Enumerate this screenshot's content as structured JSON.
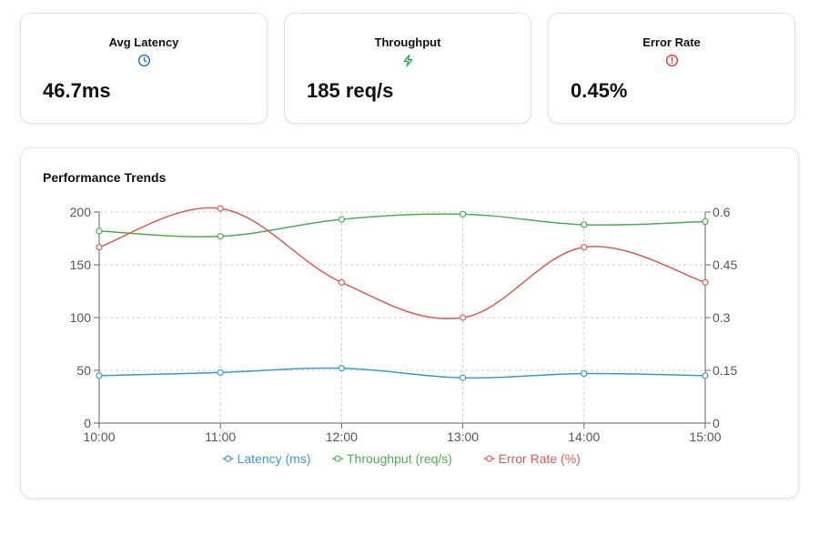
{
  "cards": [
    {
      "title": "Avg Latency",
      "value": "46.7ms",
      "icon": "clock-icon",
      "color": "#1a6fd4"
    },
    {
      "title": "Throughput",
      "value": "185 req/s",
      "icon": "lightning-icon",
      "color": "#2fa84f"
    },
    {
      "title": "Error Rate",
      "value": "0.45%",
      "icon": "alert-circle-icon",
      "color": "#e53935"
    }
  ],
  "panel": {
    "title": "Performance Trends"
  },
  "chart_data": {
    "type": "line",
    "categories": [
      "10:00",
      "11:00",
      "12:00",
      "13:00",
      "14:00",
      "15:00"
    ],
    "y_left": {
      "ticks": [
        "0",
        "50",
        "100",
        "150",
        "200"
      ],
      "range": [
        0,
        200
      ]
    },
    "y_right": {
      "ticks": [
        "0",
        "0.15",
        "0.3",
        "0.45",
        "0.6"
      ],
      "range": [
        0,
        0.6
      ]
    },
    "grid": true,
    "legend_position": "bottom",
    "series": [
      {
        "name": "Latency (ms)",
        "axis": "left",
        "color": "#3a9ad9",
        "values": [
          45,
          48,
          52,
          43,
          47,
          45
        ]
      },
      {
        "name": "Throughput (req/s)",
        "axis": "left",
        "color": "#4caf50",
        "values": [
          182,
          177,
          193,
          198,
          188,
          191
        ]
      },
      {
        "name": "Error Rate (%)",
        "axis": "right",
        "color": "#e05a4f",
        "values": [
          0.5,
          0.61,
          0.4,
          0.3,
          0.5,
          0.4
        ]
      }
    ]
  }
}
